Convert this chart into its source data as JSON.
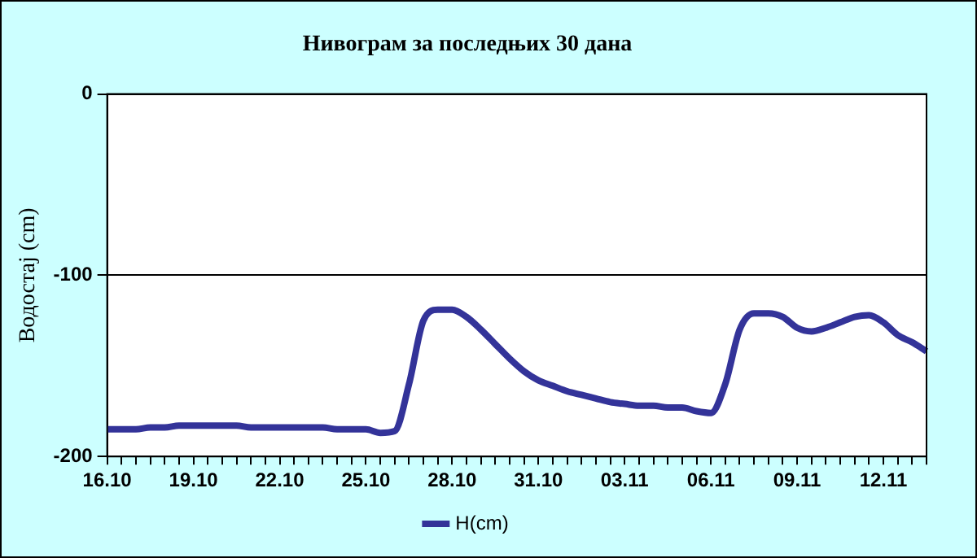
{
  "chart_data": {
    "type": "line",
    "title": "Нивограм за последњих 30 дана",
    "ylabel": "Водостај (cm)",
    "categories": [
      "16.10",
      null,
      null,
      null,
      null,
      null,
      "19.10",
      null,
      null,
      null,
      null,
      null,
      "22.10",
      null,
      null,
      null,
      null,
      null,
      "25.10",
      null,
      null,
      null,
      null,
      null,
      "28.10",
      null,
      null,
      null,
      null,
      null,
      "31.10",
      null,
      null,
      null,
      null,
      null,
      "03.11",
      null,
      null,
      null,
      null,
      null,
      "06.11",
      null,
      null,
      null,
      null,
      null,
      "09.11",
      null,
      null,
      null,
      null,
      null,
      "12.11",
      null,
      null,
      null
    ],
    "series": [
      {
        "name": "H(cm)",
        "color": "#333399",
        "values": [
          -185,
          -185,
          -185,
          -184,
          -184,
          -183,
          -183,
          -183,
          -183,
          -183,
          -184,
          -184,
          -184,
          -184,
          -184,
          -184,
          -185,
          -185,
          -185,
          -187,
          -186,
          -160,
          -125,
          -119,
          -119,
          -123,
          -130,
          -138,
          -146,
          -153,
          -158,
          -161,
          -164,
          -166,
          -168,
          -170,
          -171,
          -172,
          -172,
          -173,
          -173,
          -175,
          -176,
          -160,
          -130,
          -121,
          -121,
          -123,
          -129,
          -131,
          -129,
          -126,
          -123,
          -122,
          -126,
          -133,
          -137,
          -142
        ]
      }
    ],
    "ylim": [
      -200,
      0
    ],
    "yticks": [
      -200,
      -100,
      0
    ],
    "grid": "y",
    "legend": "bottom"
  }
}
